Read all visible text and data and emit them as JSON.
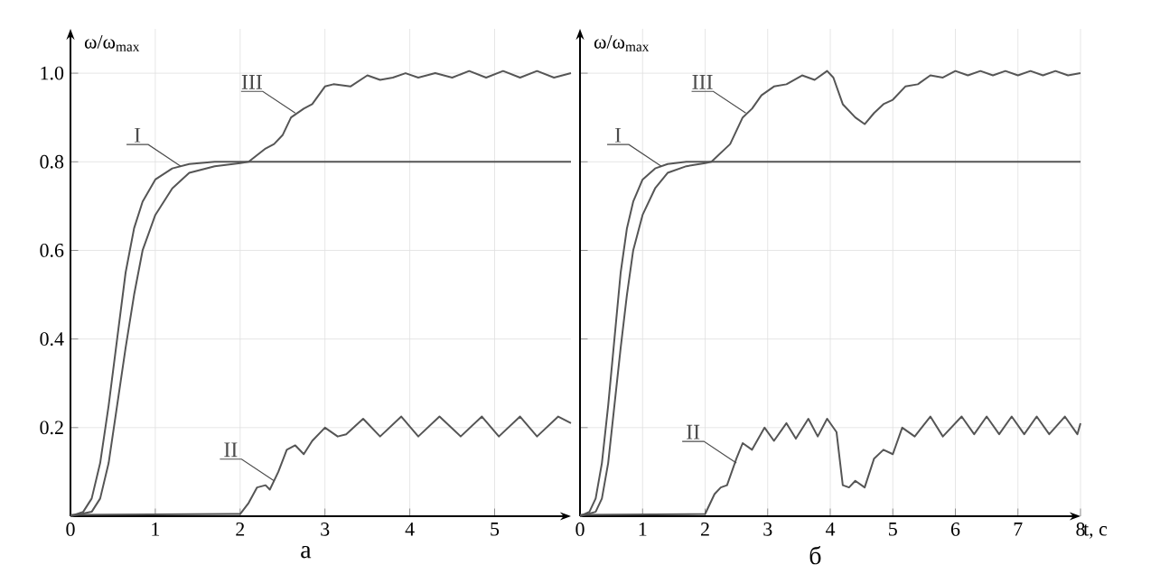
{
  "chart_data": [
    {
      "type": "line",
      "ylabel": "ω/ω$_{max}$",
      "xlim": [
        0,
        5.9
      ],
      "ylim": [
        0,
        1.1
      ],
      "xticks": [
        0,
        1,
        2,
        3,
        4,
        5
      ],
      "yticks": [
        {
          "value": 0.2,
          "label": "0.2"
        },
        {
          "value": 0.4,
          "label": "0.4"
        },
        {
          "value": 0.6,
          "label": "0.6"
        },
        {
          "value": 0.8,
          "label": "0.8"
        },
        {
          "value": 1,
          "label": "1.0"
        }
      ],
      "grid": true,
      "series": [
        {
          "color": "#555555",
          "x": [
            0,
            0.15,
            0.25,
            0.35,
            0.45,
            0.55,
            0.65,
            0.75,
            0.85,
            1.0,
            1.2,
            1.4,
            1.7,
            5.9
          ],
          "values": [
            0,
            0.01,
            0.04,
            0.12,
            0.25,
            0.4,
            0.55,
            0.65,
            0.71,
            0.76,
            0.785,
            0.795,
            0.8,
            0.8
          ]
        },
        {
          "color": "#555555",
          "x": [
            0,
            0.25,
            0.35,
            0.45,
            0.55,
            0.65,
            0.75,
            0.85,
            1.0,
            1.2,
            1.4,
            1.7,
            2.0,
            2.1,
            2.3,
            2.4,
            2.5,
            2.6,
            2.75,
            2.85,
            3.0,
            3.1,
            3.3,
            3.5,
            3.65,
            3.8,
            3.95,
            4.1,
            4.3,
            4.5,
            4.7,
            4.9,
            5.1,
            5.3,
            5.5,
            5.7,
            5.9
          ],
          "values": [
            0,
            0.01,
            0.04,
            0.12,
            0.25,
            0.38,
            0.5,
            0.6,
            0.68,
            0.74,
            0.775,
            0.79,
            0.797,
            0.8,
            0.83,
            0.84,
            0.86,
            0.9,
            0.92,
            0.93,
            0.97,
            0.975,
            0.97,
            0.995,
            0.985,
            0.99,
            1.0,
            0.99,
            1.0,
            0.99,
            1.005,
            0.99,
            1.005,
            0.99,
            1.005,
            0.99,
            1.0
          ]
        },
        {
          "color": "#555555",
          "x": [
            0,
            2.0,
            2.1,
            2.2,
            2.3,
            2.35,
            2.45,
            2.55,
            2.65,
            2.75,
            2.85,
            3.0,
            3.15,
            3.25,
            3.45,
            3.65,
            3.9,
            4.1,
            4.35,
            4.6,
            4.85,
            5.05,
            5.3,
            5.5,
            5.75,
            5.9
          ],
          "values": [
            0.003,
            0.005,
            0.03,
            0.065,
            0.07,
            0.06,
            0.1,
            0.15,
            0.16,
            0.14,
            0.17,
            0.2,
            0.18,
            0.185,
            0.22,
            0.18,
            0.225,
            0.18,
            0.225,
            0.18,
            0.225,
            0.18,
            0.225,
            0.18,
            0.225,
            0.21
          ]
        }
      ],
      "annotations": [
        {
          "text": "I",
          "x": 1.3,
          "y": 0.79
        },
        {
          "text": "III",
          "x": 2.65,
          "y": 0.91
        },
        {
          "text": "II",
          "x": 2.4,
          "y": 0.08
        },
        "а"
      ]
    },
    {
      "type": "line",
      "ylabel": "ω/ω$_{max}$",
      "xlabel": "t, c",
      "xlim": [
        0,
        8
      ],
      "ylim": [
        0,
        1.1
      ],
      "xticks": [
        0,
        1,
        2,
        3,
        4,
        5,
        6,
        7,
        8
      ],
      "yticks": [
        0.2,
        0.4,
        0.6,
        0.8,
        1
      ],
      "tick_labels": "x",
      "grid": true,
      "series": [
        {
          "color": "#555555",
          "x": [
            0,
            0.15,
            0.25,
            0.35,
            0.45,
            0.55,
            0.65,
            0.75,
            0.85,
            1.0,
            1.2,
            1.4,
            1.7,
            8
          ],
          "values": [
            0,
            0.01,
            0.04,
            0.12,
            0.25,
            0.4,
            0.55,
            0.65,
            0.71,
            0.76,
            0.785,
            0.795,
            0.8,
            0.8
          ]
        },
        {
          "color": "#555555",
          "x": [
            0,
            0.25,
            0.35,
            0.45,
            0.55,
            0.65,
            0.75,
            0.85,
            1.0,
            1.2,
            1.4,
            1.7,
            2.0,
            2.1,
            2.4,
            2.6,
            2.75,
            2.9,
            3.1,
            3.3,
            3.55,
            3.75,
            3.95,
            4.05,
            4.2,
            4.4,
            4.55,
            4.7,
            4.85,
            5.0,
            5.2,
            5.4,
            5.6,
            5.8,
            6.0,
            6.2,
            6.4,
            6.6,
            6.8,
            7.0,
            7.2,
            7.4,
            7.6,
            7.8,
            8.0
          ],
          "values": [
            0,
            0.01,
            0.04,
            0.12,
            0.25,
            0.38,
            0.5,
            0.6,
            0.68,
            0.74,
            0.775,
            0.79,
            0.797,
            0.8,
            0.84,
            0.9,
            0.92,
            0.95,
            0.97,
            0.975,
            0.995,
            0.985,
            1.005,
            0.99,
            0.93,
            0.9,
            0.885,
            0.91,
            0.93,
            0.94,
            0.97,
            0.975,
            0.995,
            0.99,
            1.005,
            0.995,
            1.005,
            0.995,
            1.005,
            0.995,
            1.005,
            0.995,
            1.005,
            0.995,
            1.0
          ]
        },
        {
          "color": "#555555",
          "x": [
            0,
            2.0,
            2.15,
            2.25,
            2.35,
            2.5,
            2.6,
            2.75,
            2.95,
            3.1,
            3.3,
            3.45,
            3.65,
            3.8,
            3.95,
            4.1,
            4.2,
            4.3,
            4.4,
            4.55,
            4.7,
            4.85,
            5.0,
            5.15,
            5.35,
            5.6,
            5.8,
            6.1,
            6.3,
            6.5,
            6.7,
            6.9,
            7.1,
            7.3,
            7.5,
            7.75,
            7.95,
            8.0
          ],
          "values": [
            0.003,
            0.005,
            0.05,
            0.065,
            0.07,
            0.13,
            0.165,
            0.15,
            0.2,
            0.17,
            0.21,
            0.175,
            0.22,
            0.18,
            0.22,
            0.19,
            0.07,
            0.065,
            0.08,
            0.065,
            0.13,
            0.15,
            0.14,
            0.2,
            0.18,
            0.225,
            0.18,
            0.225,
            0.185,
            0.225,
            0.185,
            0.225,
            0.185,
            0.225,
            0.185,
            0.225,
            0.185,
            0.21
          ]
        }
      ],
      "annotations": [
        {
          "text": "I",
          "x": 1.3,
          "y": 0.79
        },
        {
          "text": "III",
          "x": 2.65,
          "y": 0.91
        },
        {
          "text": "II",
          "x": 2.5,
          "y": 0.12
        },
        "б"
      ]
    }
  ]
}
